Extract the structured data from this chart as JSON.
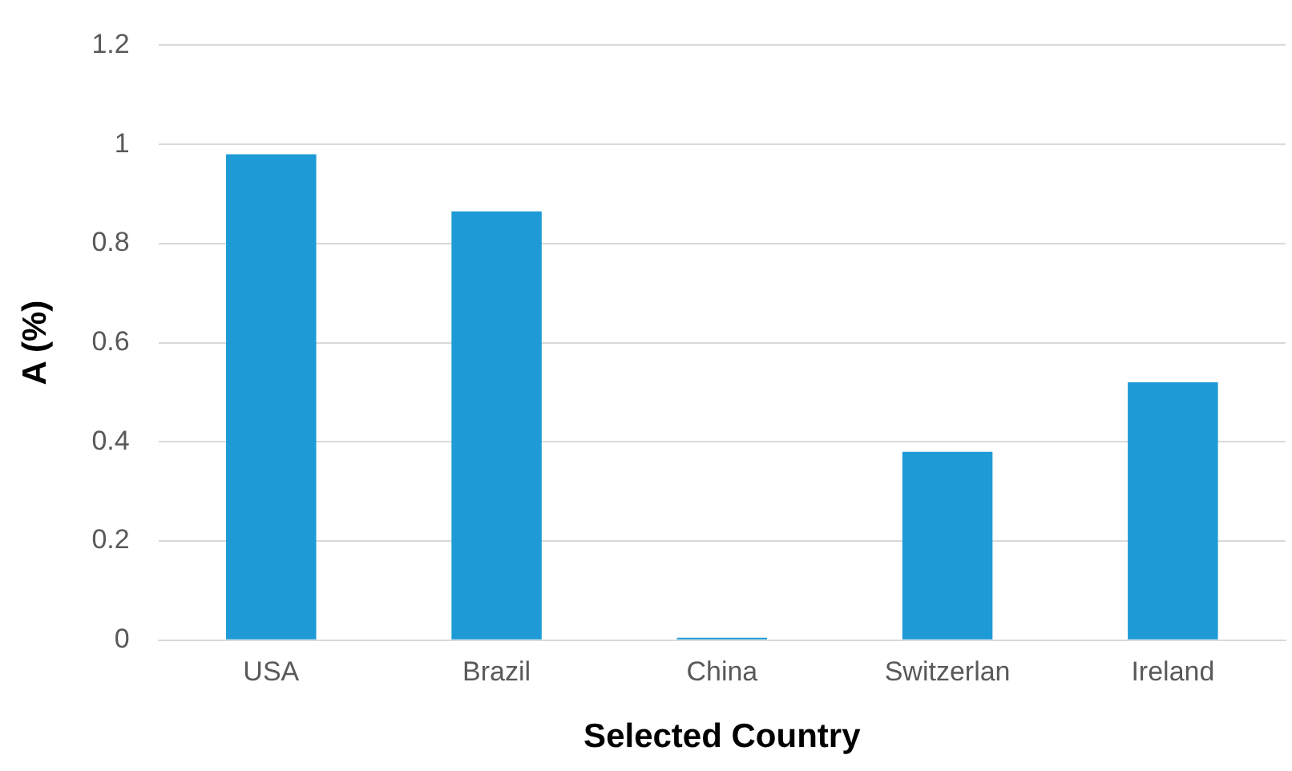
{
  "chart_data": {
    "type": "bar",
    "xlabel": "Selected Country",
    "ylabel": "A (%)",
    "categories": [
      "USA",
      "Brazil",
      "China",
      "Switzerlan",
      "Ireland"
    ],
    "values": [
      0.98,
      0.865,
      0.005,
      0.38,
      0.52
    ],
    "color": "#1e9bd7",
    "ylim": [
      0,
      1.2
    ],
    "yticks": [
      0,
      0.2,
      0.4,
      0.6,
      0.8,
      1,
      1.2
    ],
    "grid": "y",
    "legend": false
  }
}
